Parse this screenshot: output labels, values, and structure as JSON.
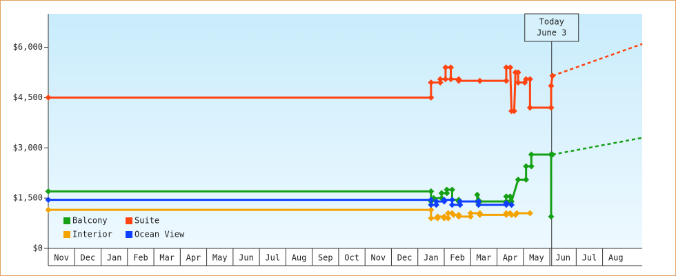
{
  "chart_data": {
    "type": "line",
    "ylim": [
      0,
      7000
    ],
    "yticks": [
      {
        "value": 0,
        "label": "$0"
      },
      {
        "value": 1500,
        "label": "$1,500"
      },
      {
        "value": 3000,
        "label": "$3,000"
      },
      {
        "value": 4500,
        "label": "$4,500"
      },
      {
        "value": 6000,
        "label": "$6,000"
      }
    ],
    "xlim": [
      0,
      22.5
    ],
    "xticks": [
      {
        "value": 0.5,
        "label": "Nov"
      },
      {
        "value": 1.5,
        "label": "Dec"
      },
      {
        "value": 2.5,
        "label": "Jan"
      },
      {
        "value": 3.5,
        "label": "Feb"
      },
      {
        "value": 4.5,
        "label": "Mar"
      },
      {
        "value": 5.5,
        "label": "Apr"
      },
      {
        "value": 6.5,
        "label": "May"
      },
      {
        "value": 7.5,
        "label": "Jun"
      },
      {
        "value": 8.5,
        "label": "Jul"
      },
      {
        "value": 9.5,
        "label": "Aug"
      },
      {
        "value": 10.5,
        "label": "Sep"
      },
      {
        "value": 11.5,
        "label": "Oct"
      },
      {
        "value": 12.5,
        "label": "Nov"
      },
      {
        "value": 13.5,
        "label": "Dec"
      },
      {
        "value": 14.5,
        "label": "Jan"
      },
      {
        "value": 15.5,
        "label": "Feb"
      },
      {
        "value": 16.5,
        "label": "Mar"
      },
      {
        "value": 17.5,
        "label": "Apr"
      },
      {
        "value": 18.5,
        "label": "May"
      },
      {
        "value": 19.5,
        "label": "Jun"
      },
      {
        "value": 20.5,
        "label": "Jul"
      },
      {
        "value": 21.5,
        "label": "Aug"
      }
    ],
    "legend": "lower left",
    "annotation": {
      "lines": [
        "Today",
        "June 3"
      ],
      "x": 19.07
    },
    "series": [
      {
        "name": "Balcony",
        "color": "#16a016",
        "x": [
          0,
          14.5,
          14.5,
          14.6,
          14.9,
          14.9,
          15.1,
          15.1,
          15.3,
          15.3,
          15.55,
          15.55,
          16.25,
          16.25,
          16.35,
          17.35,
          17.35,
          17.5,
          17.5,
          17.55,
          17.8,
          18.1,
          18.1,
          18.3,
          18.3,
          19.05,
          19.05,
          19.05,
          19.1
        ],
        "values": [
          1700,
          1700,
          1400,
          1500,
          1500,
          1650,
          1650,
          1750,
          1750,
          1450,
          1450,
          1400,
          1400,
          1600,
          1400,
          1400,
          1550,
          1550,
          1400,
          1400,
          2050,
          2050,
          2450,
          2450,
          2800,
          2800,
          950,
          2800,
          2800
        ],
        "forecast": {
          "x": [
            19.1,
            22.5
          ],
          "values": [
            2800,
            3300
          ]
        }
      },
      {
        "name": "Suite",
        "color": "#ff4411",
        "x": [
          0,
          14.5,
          14.5,
          14.85,
          14.85,
          15.05,
          15.05,
          15.25,
          15.25,
          15.55,
          15.55,
          16.35,
          17.35,
          17.35,
          17.5,
          17.55,
          17.65,
          17.7,
          17.8,
          17.8,
          18.05,
          18.1,
          18.25,
          18.25,
          19.05,
          19.05,
          19.1
        ],
        "values": [
          4500,
          4500,
          4950,
          4950,
          5050,
          5050,
          5400,
          5400,
          5050,
          5050,
          5000,
          5000,
          5000,
          5400,
          5400,
          4100,
          4100,
          5250,
          5250,
          4950,
          4950,
          5050,
          5050,
          4200,
          4200,
          4850,
          5150
        ],
        "forecast": {
          "x": [
            19.1,
            22.5
          ],
          "values": [
            5150,
            6100
          ]
        }
      },
      {
        "name": "Interior",
        "color": "#f5a300",
        "x": [
          0,
          14.5,
          14.5,
          14.75,
          14.75,
          15.0,
          15.0,
          15.15,
          15.15,
          15.3,
          15.35,
          15.55,
          15.55,
          16.0,
          16.0,
          16.35,
          16.35,
          17.35,
          17.35,
          17.5,
          17.55,
          17.7,
          17.75,
          18.25
        ],
        "values": [
          1150,
          1150,
          900,
          900,
          950,
          950,
          900,
          900,
          1050,
          1050,
          1000,
          1000,
          950,
          950,
          1050,
          1050,
          1000,
          1000,
          1050,
          1050,
          1000,
          1000,
          1050,
          1050
        ]
      },
      {
        "name": "Ocean View",
        "color": "#1040ff",
        "x": [
          0,
          14.5,
          14.5,
          14.7,
          14.7,
          15.0,
          15.0,
          15.3,
          15.3,
          15.6,
          15.6,
          16.3,
          16.3,
          17.35,
          17.35,
          17.55
        ],
        "values": [
          1450,
          1450,
          1300,
          1300,
          1400,
          1400,
          1450,
          1450,
          1300,
          1300,
          1400,
          1400,
          1300,
          1300,
          1350,
          1300
        ]
      }
    ]
  }
}
